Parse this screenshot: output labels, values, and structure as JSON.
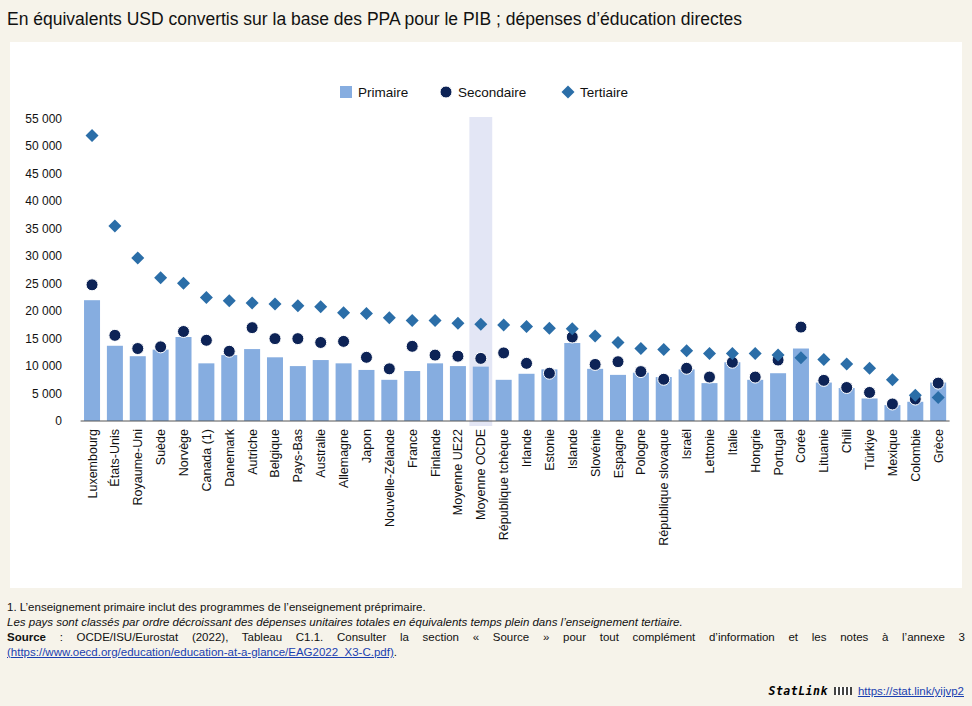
{
  "chart_data": {
    "type": "bar",
    "title": "En équivalents USD convertis sur la base des PPA pour le PIB ; dépenses d’éducation directes",
    "categories": [
      "Luxembourg",
      "États-Unis",
      "Royaume-Uni",
      "Suède",
      "Norvège",
      "Canada (1)",
      "Danemark",
      "Autriche",
      "Belgique",
      "Pays-Bas",
      "Australie",
      "Allemagne",
      "Japon",
      "Nouvelle-Zélande",
      "France",
      "Finlande",
      "Moyenne UE22",
      "Moyenne OCDE",
      "République tchèque",
      "Irlande",
      "Estonie",
      "Islande",
      "Slovénie",
      "Espagne",
      "Pologne",
      "République slovaque",
      "Israël",
      "Lettonie",
      "Italie",
      "Hongrie",
      "Portugal",
      "Corée",
      "Lituanie",
      "Chili",
      "Türkiye",
      "Mexique",
      "Colombie",
      "Grèce"
    ],
    "series": [
      {
        "name": "Primaire",
        "type": "bar",
        "marker": "square",
        "color": "#86ade0",
        "values": [
          22000,
          13700,
          11800,
          13000,
          15300,
          10500,
          12000,
          13100,
          11600,
          10000,
          11100,
          10500,
          9300,
          7500,
          9100,
          10500,
          10000,
          9900,
          7500,
          8600,
          9400,
          14200,
          9500,
          8400,
          8800,
          8000,
          9400,
          6900,
          10700,
          7500,
          8700,
          13200,
          7000,
          6000,
          4100,
          2900,
          3500,
          7000
        ]
      },
      {
        "name": "Secondaire",
        "type": "scatter",
        "marker": "circle",
        "color": "#0d2356",
        "values": [
          24800,
          15600,
          13200,
          13500,
          16300,
          14700,
          12700,
          17000,
          15000,
          15000,
          14300,
          14500,
          11600,
          9500,
          13600,
          12000,
          11800,
          11400,
          12400,
          10500,
          8700,
          15300,
          10300,
          10800,
          9000,
          7600,
          9600,
          8000,
          10700,
          8000,
          11100,
          17100,
          7400,
          6100,
          5200,
          3100,
          4000,
          6900
        ]
      },
      {
        "name": "Tertiaire",
        "type": "scatter",
        "marker": "diamond",
        "color": "#2b6ea8",
        "values": [
          52000,
          35500,
          29700,
          26100,
          25100,
          22500,
          21900,
          21500,
          21300,
          21000,
          20800,
          19700,
          19600,
          18800,
          18300,
          18300,
          17800,
          17600,
          17500,
          17200,
          16900,
          16800,
          15500,
          14300,
          13200,
          13000,
          12800,
          12300,
          12300,
          12300,
          12000,
          11500,
          11200,
          10400,
          9600,
          7500,
          4700,
          4300
        ]
      }
    ],
    "ylim": [
      0,
      55000
    ],
    "yticks": [
      0,
      {
        "value": 5000,
        "label": "5 000"
      },
      {
        "value": 10000,
        "label": "10 000"
      },
      {
        "value": 15000,
        "label": "15 000"
      },
      {
        "value": 20000,
        "label": "20 000"
      },
      {
        "value": 25000,
        "label": "25 000"
      },
      {
        "value": 30000,
        "label": "30 000"
      },
      {
        "value": 35000,
        "label": "35 000"
      },
      {
        "value": 40000,
        "label": "40 000"
      },
      {
        "value": 45000,
        "label": "45 000"
      },
      {
        "value": 50000,
        "label": "50 000"
      },
      {
        "value": 55000,
        "label": "55 000"
      }
    ],
    "grid": false,
    "legend": "top",
    "notes": {
      "footnote": "1. L’enseignement primaire inclut des programmes de l’enseignement préprimaire.",
      "ranking": "Les pays sont classés par ordre décroissant des dépenses unitaires totales en équivalents temps plein dans l’enseignement tertiaire.",
      "source_label": "Source",
      "source_text": " :  OCDE/ISU/Eurostat (2022), Tableau C1.1. Consulter la section « Source » pour tout complément d’information et les notes à l’annexe 3",
      "source_url": "(https://www.oecd.org/education/education-at-a-glance/EAG2022_X3-C.pdf)",
      "source_end": ".",
      "statlink_label": "StatLink",
      "statlink_url": "https://stat.link/yijvp2"
    }
  }
}
